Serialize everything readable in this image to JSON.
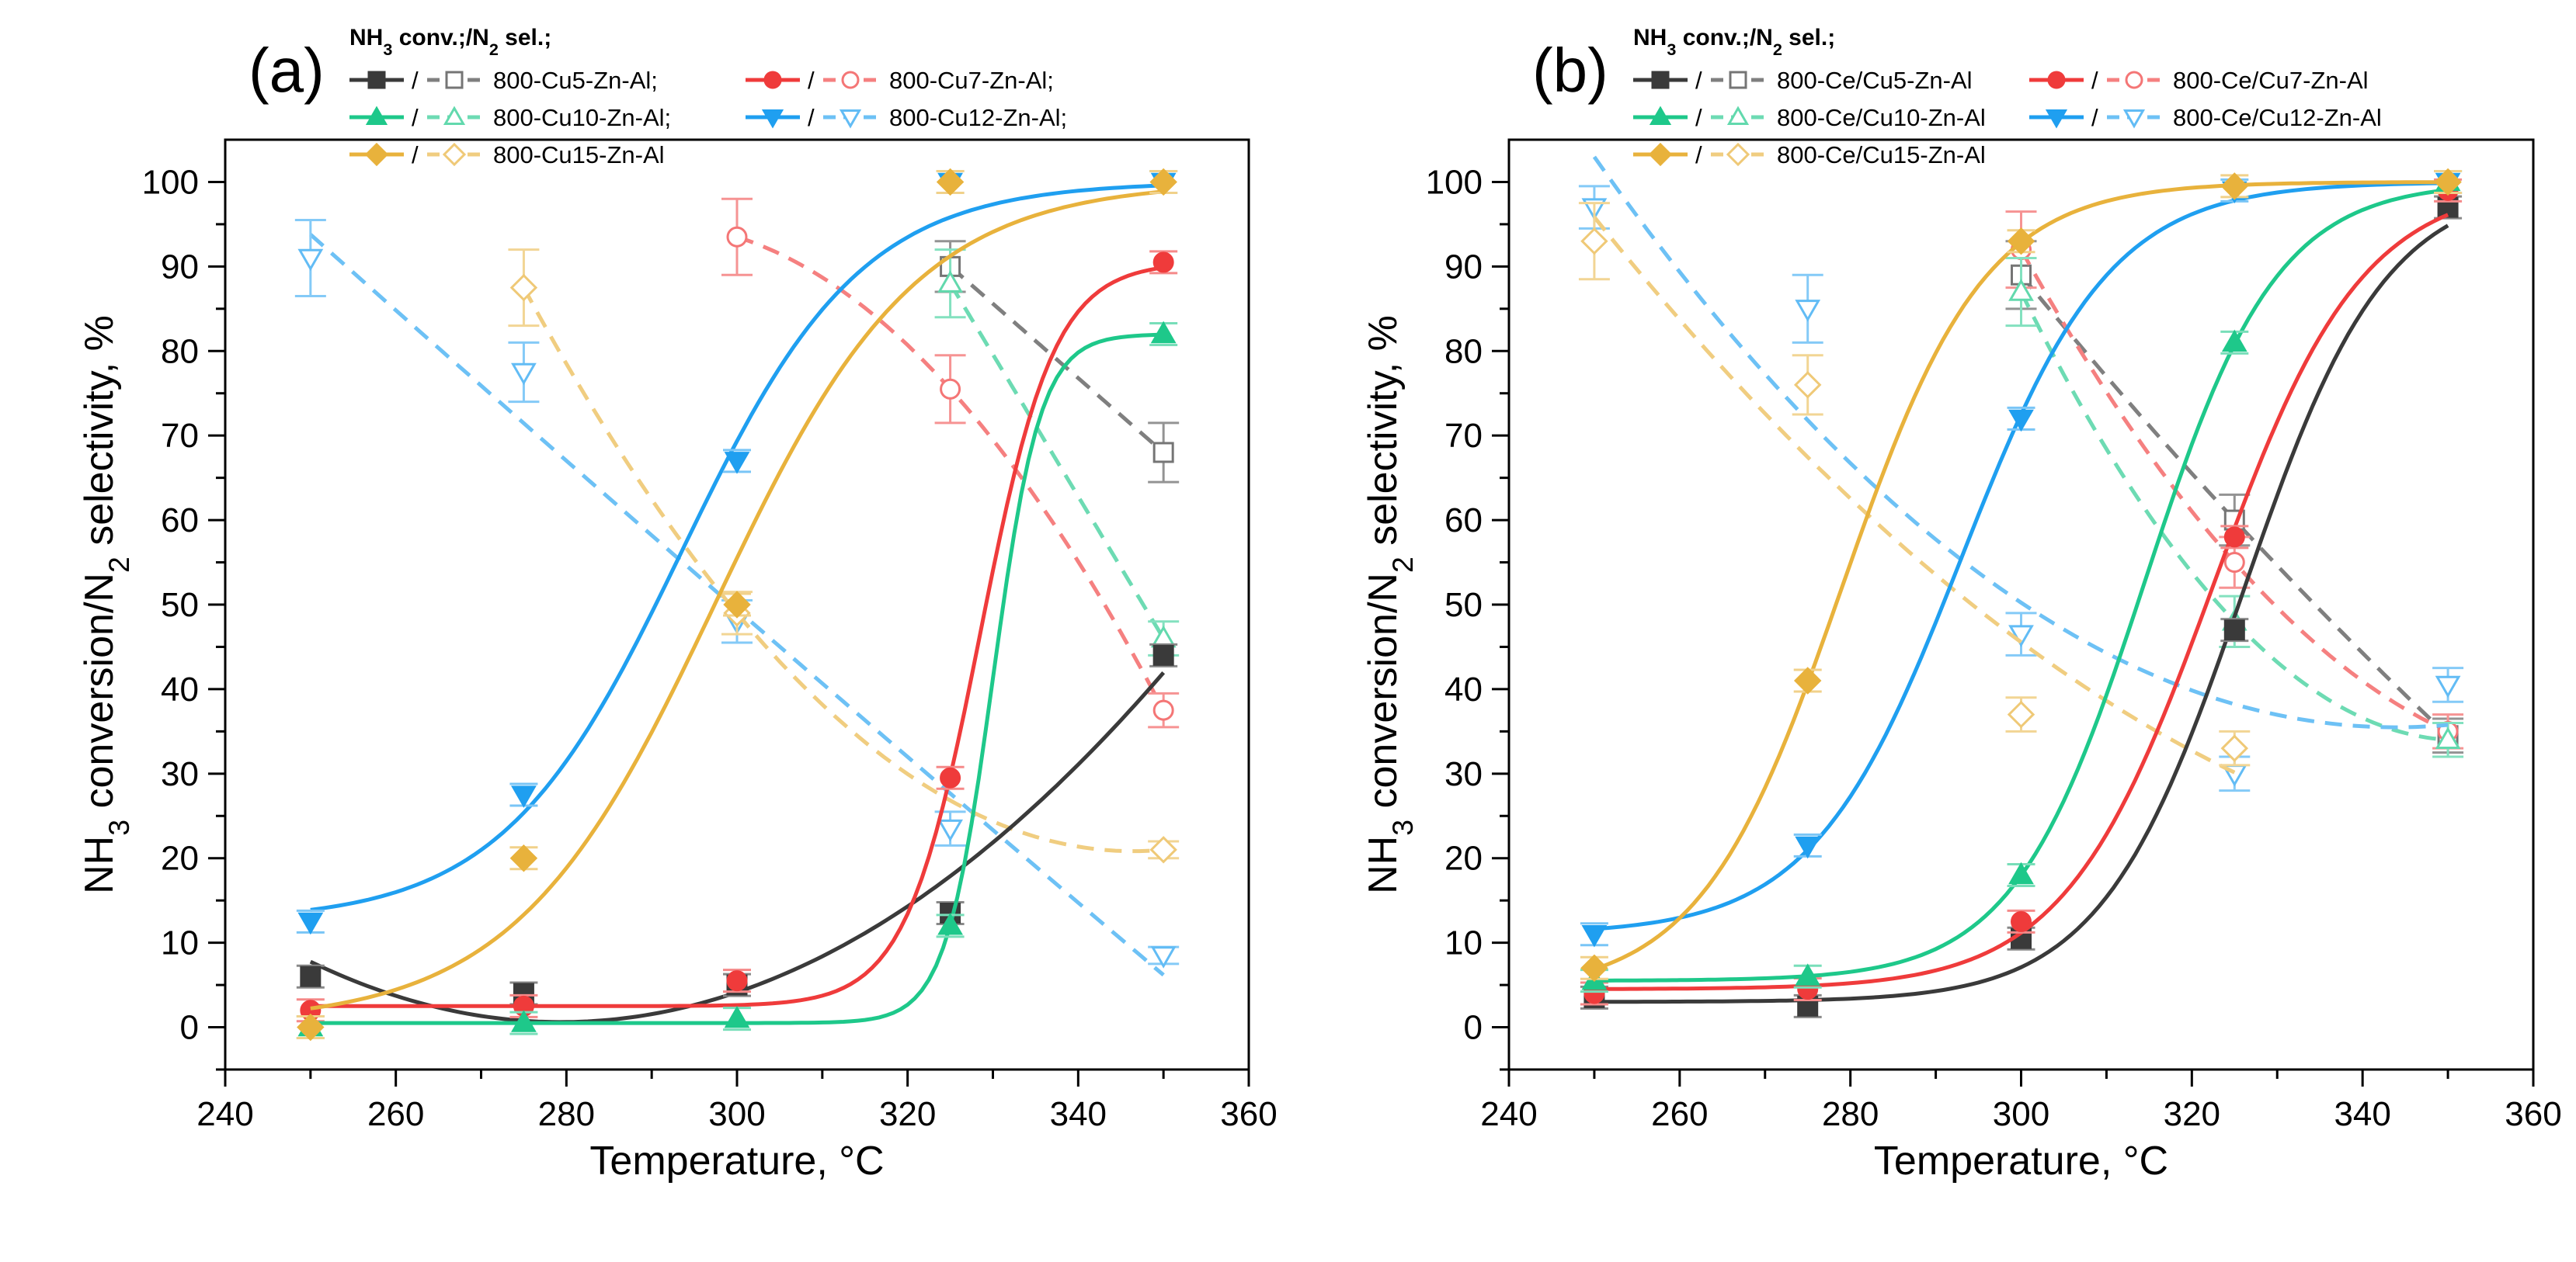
{
  "chart_data": [
    {
      "panel": "(a)",
      "type": "line",
      "ylabel": "NH3 conversion/N2 selectivity, %",
      "xlabel": "Temperature, °C",
      "xlim": [
        240,
        360
      ],
      "ylim": [
        -5,
        105
      ],
      "xticks": [
        240,
        260,
        280,
        300,
        320,
        340,
        360
      ],
      "yticks": [
        0,
        10,
        20,
        30,
        40,
        50,
        60,
        70,
        80,
        90,
        100
      ],
      "legend_header": "NH3 conv.;/N2 sel.;",
      "legend_separator": "/",
      "series": [
        {
          "name": "800-Cu5-Zn-Al;",
          "color": "#3a3a3a",
          "conv_marker": "square",
          "x": [
            250,
            275,
            300,
            325,
            350
          ],
          "conversion": [
            6,
            4,
            5,
            13.5,
            44
          ],
          "sel_x": [
            325,
            350
          ],
          "selectivity": [
            90,
            68
          ],
          "sel_err": [
            3,
            3.5
          ]
        },
        {
          "name": "800-Cu7-Zn-Al;",
          "color": "#ef3b3b",
          "conv_marker": "circle",
          "x": [
            250,
            275,
            300,
            325,
            350
          ],
          "conversion": [
            2,
            2.5,
            5.5,
            29.5,
            90.5
          ],
          "sel_x": [
            300,
            325,
            350
          ],
          "selectivity": [
            93.5,
            75.5,
            37.5
          ],
          "sel_err": [
            4.5,
            4,
            2
          ]
        },
        {
          "name": "800-Cu10-Zn-Al;",
          "color": "#1ec88a",
          "conv_marker": "triangle-up",
          "x": [
            250,
            275,
            300,
            325,
            350
          ],
          "conversion": [
            0,
            0.5,
            1,
            12,
            82
          ],
          "sel_x": [
            325,
            350
          ],
          "selectivity": [
            88,
            46
          ],
          "sel_err": [
            4,
            2
          ]
        },
        {
          "name": "800-Cu12-Zn-Al;",
          "color": "#1f9ff0",
          "conv_marker": "triangle-down",
          "x": [
            250,
            275,
            300,
            325,
            350
          ],
          "conversion": [
            12.5,
            27.5,
            67,
            100,
            100
          ],
          "sel_x": [
            250,
            275,
            300,
            325,
            350
          ],
          "selectivity": [
            91,
            77.5,
            48,
            23.5,
            8.5
          ],
          "sel_err": [
            4.5,
            3.5,
            2.5,
            2,
            1
          ]
        },
        {
          "name": "800-Cu15-Zn-Al",
          "color": "#e8b23c",
          "conv_marker": "diamond",
          "x": [
            250,
            275,
            300,
            325,
            350
          ],
          "conversion": [
            0,
            20,
            50,
            100,
            100
          ],
          "sel_x": [
            275,
            300,
            350
          ],
          "selectivity": [
            87.5,
            49,
            21
          ],
          "sel_err": [
            4.5,
            2.5,
            1
          ]
        }
      ]
    },
    {
      "panel": "(b)",
      "type": "line",
      "ylabel": "NH3 conversion/N2 selectivity, %",
      "xlabel": "Temperature, °C",
      "xlim": [
        240,
        360
      ],
      "ylim": [
        -5,
        105
      ],
      "xticks": [
        240,
        260,
        280,
        300,
        320,
        340,
        360
      ],
      "yticks": [
        0,
        10,
        20,
        30,
        40,
        50,
        60,
        70,
        80,
        90,
        100
      ],
      "legend_header": "NH3 conv.;/N2 sel.;",
      "legend_separator": "/",
      "series": [
        {
          "name": "800-Ce/Cu5-Zn-Al",
          "color": "#3a3a3a",
          "conv_marker": "square",
          "x": [
            250,
            275,
            300,
            325,
            350
          ],
          "conversion": [
            3.5,
            2.5,
            10.5,
            47,
            97
          ],
          "sel_x": [
            300,
            325,
            350
          ],
          "selectivity": [
            89,
            60,
            34.5
          ],
          "sel_err": [
            4,
            3,
            2
          ]
        },
        {
          "name": "800-Ce/Cu7-Zn-Al",
          "color": "#ef3b3b",
          "conv_marker": "circle",
          "x": [
            250,
            275,
            300,
            325,
            350
          ],
          "conversion": [
            4,
            4.5,
            12.5,
            58,
            99
          ],
          "sel_x": [
            300,
            325,
            350
          ],
          "selectivity": [
            92,
            55,
            35
          ],
          "sel_err": [
            4.5,
            3,
            2
          ]
        },
        {
          "name": "800-Ce/Cu10-Zn-Al",
          "color": "#1ec88a",
          "conv_marker": "triangle-up",
          "x": [
            250,
            275,
            300,
            325,
            350
          ],
          "conversion": [
            5.5,
            6,
            18,
            81,
            100
          ],
          "sel_x": [
            300,
            325,
            350
          ],
          "selectivity": [
            87,
            48,
            34
          ],
          "sel_err": [
            4,
            3,
            2
          ]
        },
        {
          "name": "800-Ce/Cu12-Zn-Al",
          "color": "#1f9ff0",
          "conv_marker": "triangle-down",
          "x": [
            250,
            275,
            300,
            325,
            350
          ],
          "conversion": [
            11,
            21.5,
            72,
            99,
            100
          ],
          "sel_x": [
            250,
            275,
            300,
            325,
            350
          ],
          "selectivity": [
            97,
            85,
            46.5,
            30,
            40.5
          ],
          "sel_err": [
            2.5,
            4,
            2.5,
            2,
            2
          ]
        },
        {
          "name": "800-Ce/Cu15-Zn-Al",
          "color": "#e8b23c",
          "conv_marker": "diamond",
          "x": [
            250,
            275,
            300,
            325,
            350
          ],
          "conversion": [
            7,
            41,
            93,
            99.5,
            100
          ],
          "sel_x": [
            250,
            275,
            300,
            325
          ],
          "selectivity": [
            93,
            76,
            37,
            33
          ],
          "sel_err": [
            4.5,
            3.5,
            2,
            2
          ]
        }
      ]
    }
  ]
}
